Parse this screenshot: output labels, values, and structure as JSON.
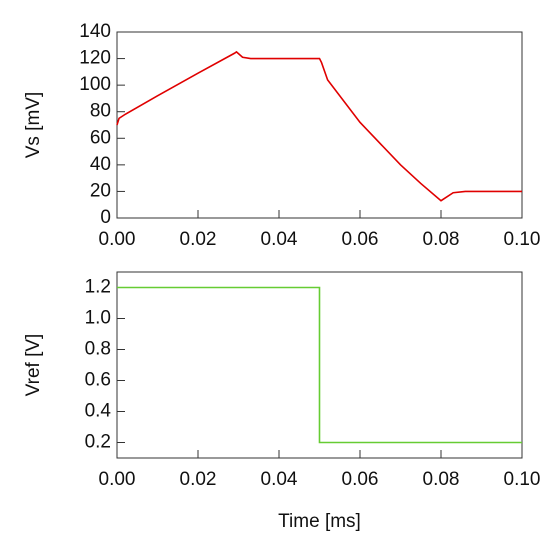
{
  "chart_data": [
    {
      "type": "line",
      "ylabel": "Vs [mV]",
      "x": [
        0,
        0.0005,
        0.002,
        0.01,
        0.02,
        0.029,
        0.0295,
        0.031,
        0.033,
        0.04,
        0.05,
        0.0505,
        0.052,
        0.06,
        0.07,
        0.075,
        0.08,
        0.081,
        0.083,
        0.086,
        0.1
      ],
      "values": [
        70,
        75,
        78,
        92,
        109,
        124,
        125,
        121,
        120,
        120,
        120,
        117,
        104,
        72,
        40,
        26,
        13,
        15,
        19,
        20,
        20
      ],
      "color": "#e00000",
      "xlim": [
        0,
        0.1
      ],
      "xticks": [
        {
          "value": 0,
          "label": "0.00"
        },
        0.02,
        0.04,
        0.06,
        0.08,
        {
          "value": 0.1,
          "label": "0.10"
        }
      ],
      "ylim": [
        0,
        140
      ],
      "yticks": [
        0,
        20,
        40,
        60,
        80,
        100,
        120,
        140
      ]
    },
    {
      "type": "line",
      "ylabel": "Vref [V]",
      "xlabel": "Time [ms]",
      "x": [
        0,
        0.05,
        0.05,
        0.1
      ],
      "values": [
        1.2,
        1.2,
        0.2,
        0.2
      ],
      "color": "#66cc33",
      "xlim": [
        0,
        0.1
      ],
      "xticks": [
        {
          "value": 0,
          "label": "0.00"
        },
        0.02,
        0.04,
        0.06,
        0.08,
        {
          "value": 0.1,
          "label": "0.10"
        }
      ],
      "ylim": [
        0.1,
        1.3
      ],
      "yticks": [
        0.2,
        0.4,
        0.6,
        0.8,
        {
          "value": 1,
          "label": "1.0"
        },
        1.2
      ]
    }
  ]
}
